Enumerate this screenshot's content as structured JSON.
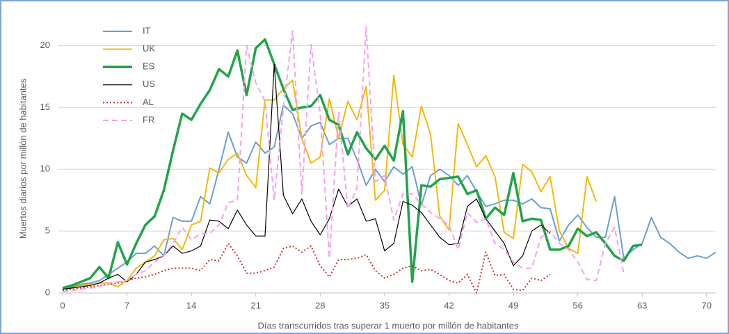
{
  "chart_data": {
    "type": "line",
    "x_label": "Días transcurridos tras superar 1 muerto por millón de habitantes",
    "y_label": "Muertos diarios por millón de habitantes",
    "x": [
      0,
      1,
      2,
      3,
      4,
      5,
      6,
      7,
      8,
      9,
      10,
      11,
      12,
      13,
      14,
      15,
      16,
      17,
      18,
      19,
      20,
      21,
      22,
      23,
      24,
      25,
      26,
      27,
      28,
      29,
      30,
      31,
      32,
      33,
      34,
      35,
      36,
      37,
      38,
      39,
      40,
      41,
      42,
      43,
      44,
      45,
      46,
      47,
      48,
      49,
      50,
      51,
      52,
      53,
      54,
      55,
      56,
      57,
      58,
      59,
      60,
      61,
      62,
      63,
      64,
      65,
      66,
      67,
      68,
      69,
      70,
      71
    ],
    "xlim": [
      0,
      71
    ],
    "xticks": [
      0,
      7,
      14,
      21,
      28,
      35,
      42,
      49,
      56,
      63,
      70
    ],
    "ylim": [
      0,
      22
    ],
    "yticks": [
      0,
      5,
      10,
      15,
      20
    ],
    "grid": true,
    "legend": "upper left",
    "series": [
      {
        "name": "IT",
        "color": "#6a9fd0",
        "width": 2,
        "style": "solid",
        "values": [
          0.4,
          0.5,
          0.7,
          0.8,
          1.0,
          1.5,
          2.0,
          2.5,
          3.2,
          3.2,
          3.8,
          3.0,
          6.1,
          5.8,
          5.8,
          7.8,
          7.2,
          10.0,
          13.0,
          11.0,
          10.5,
          12.2,
          11.3,
          11.8,
          15.2,
          14.5,
          12.5,
          13.5,
          13.8,
          12.0,
          12.5,
          12.5,
          10.8,
          8.7,
          10.0,
          9.0,
          10.2,
          9.6,
          10.2,
          7.1,
          9.5,
          10.0,
          9.5,
          8.7,
          9.5,
          8.2,
          7.0,
          7.2,
          7.5,
          7.5,
          7.2,
          7.6,
          6.9,
          6.8,
          4.2,
          5.5,
          6.3,
          5.3,
          4.5,
          4.5,
          7.8,
          2.8,
          3.5,
          4.0,
          6.1,
          4.5,
          4.0,
          3.3,
          2.8,
          3.0,
          2.8,
          3.3
        ]
      },
      {
        "name": "UK",
        "color": "#f2b90c",
        "width": 2,
        "style": "solid",
        "values": [
          0.3,
          0.4,
          0.6,
          0.7,
          0.8,
          0.8,
          0.5,
          1.0,
          2.0,
          2.5,
          3.0,
          4.3,
          4.4,
          3.5,
          5.5,
          5.8,
          10.1,
          9.7,
          10.8,
          11.3,
          9.5,
          8.5,
          15.6,
          15.6,
          16.5,
          17.2,
          12.5,
          10.5,
          11.0,
          15.7,
          12.5,
          15.5,
          14.0,
          16.7,
          7.5,
          8.3,
          17.6,
          12.0,
          11.0,
          15.1,
          12.8,
          6.2,
          5.1,
          13.7,
          12.0,
          10.2,
          11.1,
          9.4,
          4.9,
          4.4,
          10.4,
          9.8,
          8.2,
          9.4,
          5.0,
          3.6,
          3.2,
          9.4,
          7.4,
          null,
          null,
          null,
          null,
          null,
          null,
          null,
          null,
          null,
          null,
          null,
          null,
          null
        ]
      },
      {
        "name": "ES",
        "color": "#22a34a",
        "width": 3.5,
        "style": "solid",
        "values": [
          0.4,
          0.6,
          0.9,
          1.2,
          2.1,
          1.2,
          4.1,
          2.3,
          4.0,
          5.5,
          6.2,
          8.3,
          11.5,
          14.5,
          14.0,
          15.3,
          16.4,
          18.1,
          17.5,
          19.6,
          16.0,
          19.8,
          20.5,
          18.5,
          16.5,
          14.8,
          15.0,
          15.1,
          16.0,
          14.0,
          13.6,
          11.2,
          13.0,
          11.7,
          10.8,
          11.9,
          10.7,
          14.7,
          0.9,
          8.7,
          8.6,
          9.2,
          9.3,
          9.4,
          8.0,
          8.3,
          6.0,
          6.9,
          6.3,
          9.7,
          5.8,
          6.0,
          5.9,
          3.5,
          3.5,
          3.8,
          5.2,
          4.6,
          4.9,
          4.0,
          3.0,
          2.6,
          3.8,
          3.9,
          null,
          null,
          null,
          null,
          null,
          null,
          null,
          null
        ]
      },
      {
        "name": "US",
        "color": "#000000",
        "width": 1.2,
        "style": "solid",
        "values": [
          0.3,
          0.4,
          0.5,
          0.6,
          0.8,
          1.2,
          1.5,
          0.9,
          1.5,
          2.5,
          2.7,
          3.0,
          3.8,
          3.2,
          3.4,
          3.8,
          5.9,
          5.8,
          5.2,
          6.7,
          5.5,
          4.6,
          4.6,
          18.5,
          7.9,
          6.4,
          7.6,
          5.8,
          4.7,
          6.0,
          8.4,
          7.0,
          7.6,
          5.8,
          6.0,
          3.4,
          4.0,
          7.4,
          7.1,
          6.5,
          5.5,
          4.5,
          3.9,
          4.0,
          7.0,
          7.6,
          6.0,
          5.0,
          4.0,
          2.2,
          3.0,
          5.0,
          5.5,
          4.8,
          null,
          null,
          null,
          null,
          null,
          null,
          null,
          null,
          null,
          null,
          null,
          null,
          null,
          null,
          null,
          null,
          null,
          null
        ]
      },
      {
        "name": "AL",
        "color": "#d0302a",
        "width": 2,
        "style": "dotted",
        "values": [
          0.2,
          0.3,
          0.4,
          0.5,
          0.6,
          0.7,
          0.8,
          1.0,
          1.2,
          1.3,
          1.5,
          1.8,
          2.0,
          2.0,
          2.0,
          1.8,
          2.7,
          2.6,
          4.0,
          3.0,
          1.6,
          1.6,
          1.8,
          2.1,
          3.6,
          3.8,
          3.3,
          3.8,
          2.2,
          1.3,
          2.7,
          2.7,
          2.8,
          3.1,
          1.8,
          1.2,
          1.5,
          2.0,
          2.2,
          1.8,
          1.9,
          1.5,
          1.0,
          0.8,
          1.5,
          0.0,
          3.3,
          1.4,
          1.5,
          0.3,
          0.2,
          1.2,
          1.0,
          1.5,
          null,
          null,
          null,
          null,
          null,
          null,
          null,
          null,
          null,
          null,
          null,
          null,
          null,
          null,
          null,
          null,
          null,
          null
        ]
      },
      {
        "name": "FR",
        "color": "#f4a0f0",
        "width": 2,
        "style": "dashed",
        "values": [
          0.1,
          0.2,
          0.3,
          0.4,
          0.5,
          0.8,
          0.9,
          1.0,
          1.5,
          1.8,
          2.5,
          3.0,
          4.0,
          5.3,
          4.3,
          4.8,
          4.8,
          5.5,
          7.3,
          7.5,
          20.0,
          17.0,
          15.5,
          7.5,
          15.0,
          21.2,
          8.0,
          20.1,
          14.5,
          2.8,
          14.6,
          6.8,
          8.5,
          21.5,
          9.0,
          9.5,
          5.9,
          8.0,
          8.0,
          7.2,
          6.5,
          6.0,
          5.5,
          3.5,
          6.5,
          5.7,
          6.0,
          4.0,
          3.5,
          2.5,
          2.0,
          2.0,
          4.5,
          5.0,
          4.0,
          3.5,
          2.5,
          1.1,
          1.0,
          4.0,
          5.3,
          1.6,
          null,
          null,
          null,
          null,
          null,
          null,
          null,
          null,
          null,
          null
        ]
      }
    ]
  }
}
